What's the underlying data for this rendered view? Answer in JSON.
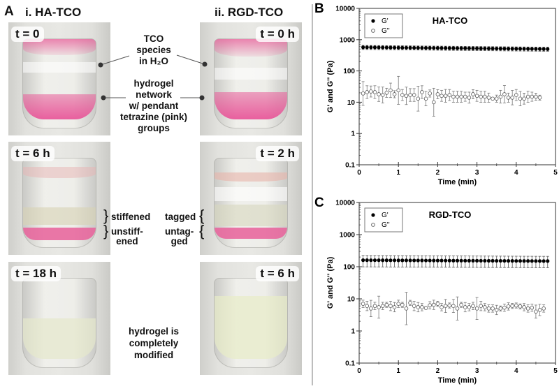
{
  "panel_a": {
    "letter": "A",
    "columns": [
      {
        "title": "i. HA-TCO",
        "photos": [
          {
            "time_label": "t = 0"
          },
          {
            "time_label": "t = 6 h"
          },
          {
            "time_label": "t = 18 h"
          }
        ]
      },
      {
        "title": "ii. RGD-TCO",
        "photos": [
          {
            "time_label": "t = 0 h"
          },
          {
            "time_label": "t = 2 h"
          },
          {
            "time_label": "t = 6 h"
          }
        ]
      }
    ],
    "annotations": {
      "tco_species": [
        "TCO",
        "species",
        "in H₂O"
      ],
      "hydrogel_network": [
        "hydrogel",
        "network",
        "w/ pendant",
        "tetrazine (pink)",
        "groups"
      ],
      "stiffened": "stiffened",
      "unstiffened": [
        "unstiff-",
        "ened"
      ],
      "tagged": "tagged",
      "untagged": [
        "untag-",
        "ged"
      ],
      "completely_modified": [
        "hydrogel is",
        "completely",
        "modified"
      ]
    },
    "colors": {
      "pink": "#e8609a",
      "pale_pink": "#e8b8c0",
      "pale_yellow": "#e6e8cc"
    }
  },
  "chart_data": [
    {
      "panel_letter": "B",
      "type": "scatter",
      "title": "HA-TCO",
      "xlabel": "Time (min)",
      "ylabel": "G' and G'' (Pa)",
      "xlim": [
        0,
        5
      ],
      "ylim": [
        0.1,
        10000
      ],
      "yscale": "log",
      "xticks": [
        "0",
        "1",
        "2",
        "3",
        "4",
        "5"
      ],
      "yticks": [
        "0.1",
        "1",
        "10",
        "100",
        "1000",
        "10000"
      ],
      "legend": {
        "placement": "top-left",
        "entries": [
          "G'",
          "G''"
        ]
      },
      "series": [
        {
          "name": "G'",
          "marker": "filled-circle",
          "x_start": 0.1,
          "x_step": 0.1,
          "count": 48,
          "mean_start": 570,
          "mean_end": 500,
          "err_low": 0.85,
          "err_high": 1.15
        },
        {
          "name": "G''",
          "marker": "open-circle",
          "x_start": 0.1,
          "x_step": 0.1,
          "values": [
            19,
            21,
            22,
            21,
            18,
            17,
            20,
            24,
            18,
            24,
            17,
            16,
            17,
            17,
            13,
            21,
            13,
            19,
            10,
            18,
            16,
            16,
            17,
            15,
            15,
            15,
            15,
            14,
            18,
            16,
            15,
            15,
            14,
            13,
            13,
            15,
            18,
            14,
            14,
            17,
            13,
            13,
            15,
            15,
            15,
            14
          ],
          "err_ratio": [
            2.4,
            1.6,
            1.5,
            1.6,
            1.7,
            1.8,
            1.4,
            1.7,
            1.3,
            2.8,
            1.5,
            1.9,
            1.6,
            1.6,
            2.5,
            1.6,
            1.7,
            1.3,
            2.8,
            1.4,
            1.5,
            1.6,
            1.5,
            1.5,
            1.5,
            1.5,
            1.4,
            1.5,
            1.4,
            1.5,
            1.5,
            1.5,
            1.4,
            1.1,
            1.3,
            1.6,
            1.9,
            1.4,
            1.7,
            1.5,
            1.7,
            1.5,
            1.5,
            1.4,
            1.3,
            1.2
          ]
        }
      ]
    },
    {
      "panel_letter": "C",
      "type": "scatter",
      "title": "RGD-TCO",
      "xlabel": "Time (min)",
      "ylabel": "G' and G'' (Pa)",
      "xlim": [
        0,
        5
      ],
      "ylim": [
        0.1,
        10000
      ],
      "yscale": "log",
      "xticks": [
        "0",
        "1",
        "2",
        "3",
        "4",
        "5"
      ],
      "yticks": [
        "0.1",
        "1",
        "10",
        "100",
        "1000",
        "10000"
      ],
      "legend": {
        "placement": "top-left",
        "entries": [
          "G'",
          "G''"
        ]
      },
      "series": [
        {
          "name": "G'",
          "marker": "filled-circle",
          "x_start": 0.1,
          "x_step": 0.1,
          "count": 48,
          "mean_start": 160,
          "mean_end": 150,
          "err_low": 0.62,
          "err_high": 1.4
        },
        {
          "name": "G''",
          "marker": "open-circle",
          "x_start": 0.1,
          "x_step": 0.1,
          "values": [
            7,
            6,
            5,
            6,
            5.5,
            6,
            6.5,
            6,
            5.5,
            7,
            6.5,
            5,
            7.5,
            6,
            5.5,
            5.5,
            5.2,
            6.3,
            6.5,
            7,
            5.5,
            6,
            6.2,
            6,
            5,
            6.5,
            5.5,
            5.5,
            6,
            5,
            6,
            5.5,
            5,
            5,
            4.5,
            5,
            5.3,
            5.8,
            6,
            6.2,
            5.8,
            5.5,
            5,
            5.3,
            4,
            4.5,
            5
          ],
          "err_ratio": [
            1.3,
            1.4,
            1.8,
            1.3,
            2.2,
            1.3,
            1.2,
            1.4,
            1.4,
            1.3,
            1.2,
            3.2,
            1.2,
            1.4,
            1.4,
            1.3,
            1.1,
            1.3,
            1.4,
            1.2,
            1.3,
            1.6,
            1.2,
            1.6,
            2.3,
            1.2,
            1.4,
            1.3,
            1.3,
            2.2,
            1.4,
            1.3,
            1.3,
            1.3,
            1.4,
            1.2,
            1.3,
            1.3,
            1.2,
            1.2,
            1.2,
            1.3,
            1.3,
            1.3,
            1.6,
            1.5,
            1.3
          ]
        }
      ]
    }
  ]
}
